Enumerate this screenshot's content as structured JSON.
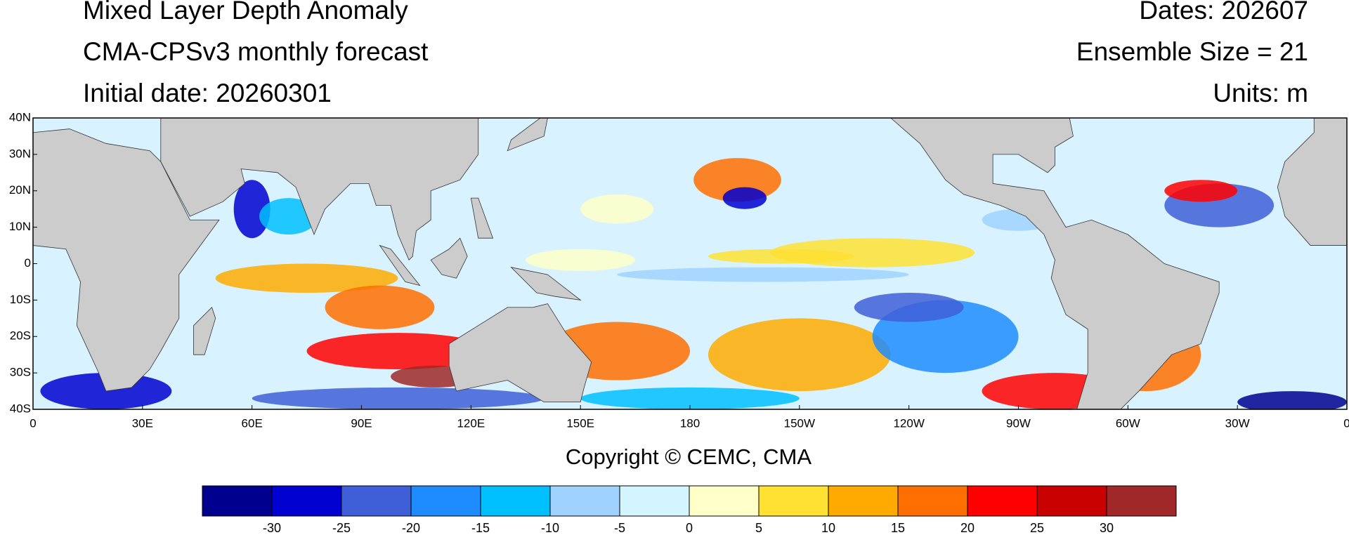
{
  "header": {
    "left": [
      "Mixed Layer Depth Anomaly",
      "CMA-CPSv3 monthly forecast",
      "Initial date: 20260301"
    ],
    "right": [
      "Dates: 202607",
      "Ensemble Size = 21",
      "Units: m"
    ]
  },
  "map": {
    "lat_labels": [
      "40N",
      "30N",
      "20N",
      "10N",
      "0",
      "10S",
      "20S",
      "30S",
      "40S"
    ],
    "lon_labels": [
      "0",
      "30E",
      "60E",
      "90E",
      "120E",
      "150E",
      "180",
      "150W",
      "120W",
      "90W",
      "60W",
      "30W",
      "0"
    ]
  },
  "copyright": "Copyright © CEMC, CMA",
  "colorbar": {
    "colors": [
      "#00008f",
      "#0000d0",
      "#3f5fd8",
      "#1e8cff",
      "#00bfff",
      "#a0d2ff",
      "#d2f5ff",
      "#ffffc8",
      "#ffe132",
      "#ffaa00",
      "#ff6e00",
      "#ff0000",
      "#c80000",
      "#a02828"
    ],
    "ticks": [
      -30,
      -25,
      -20,
      -15,
      -10,
      -5,
      0,
      5,
      10,
      15,
      20,
      25,
      30
    ]
  }
}
